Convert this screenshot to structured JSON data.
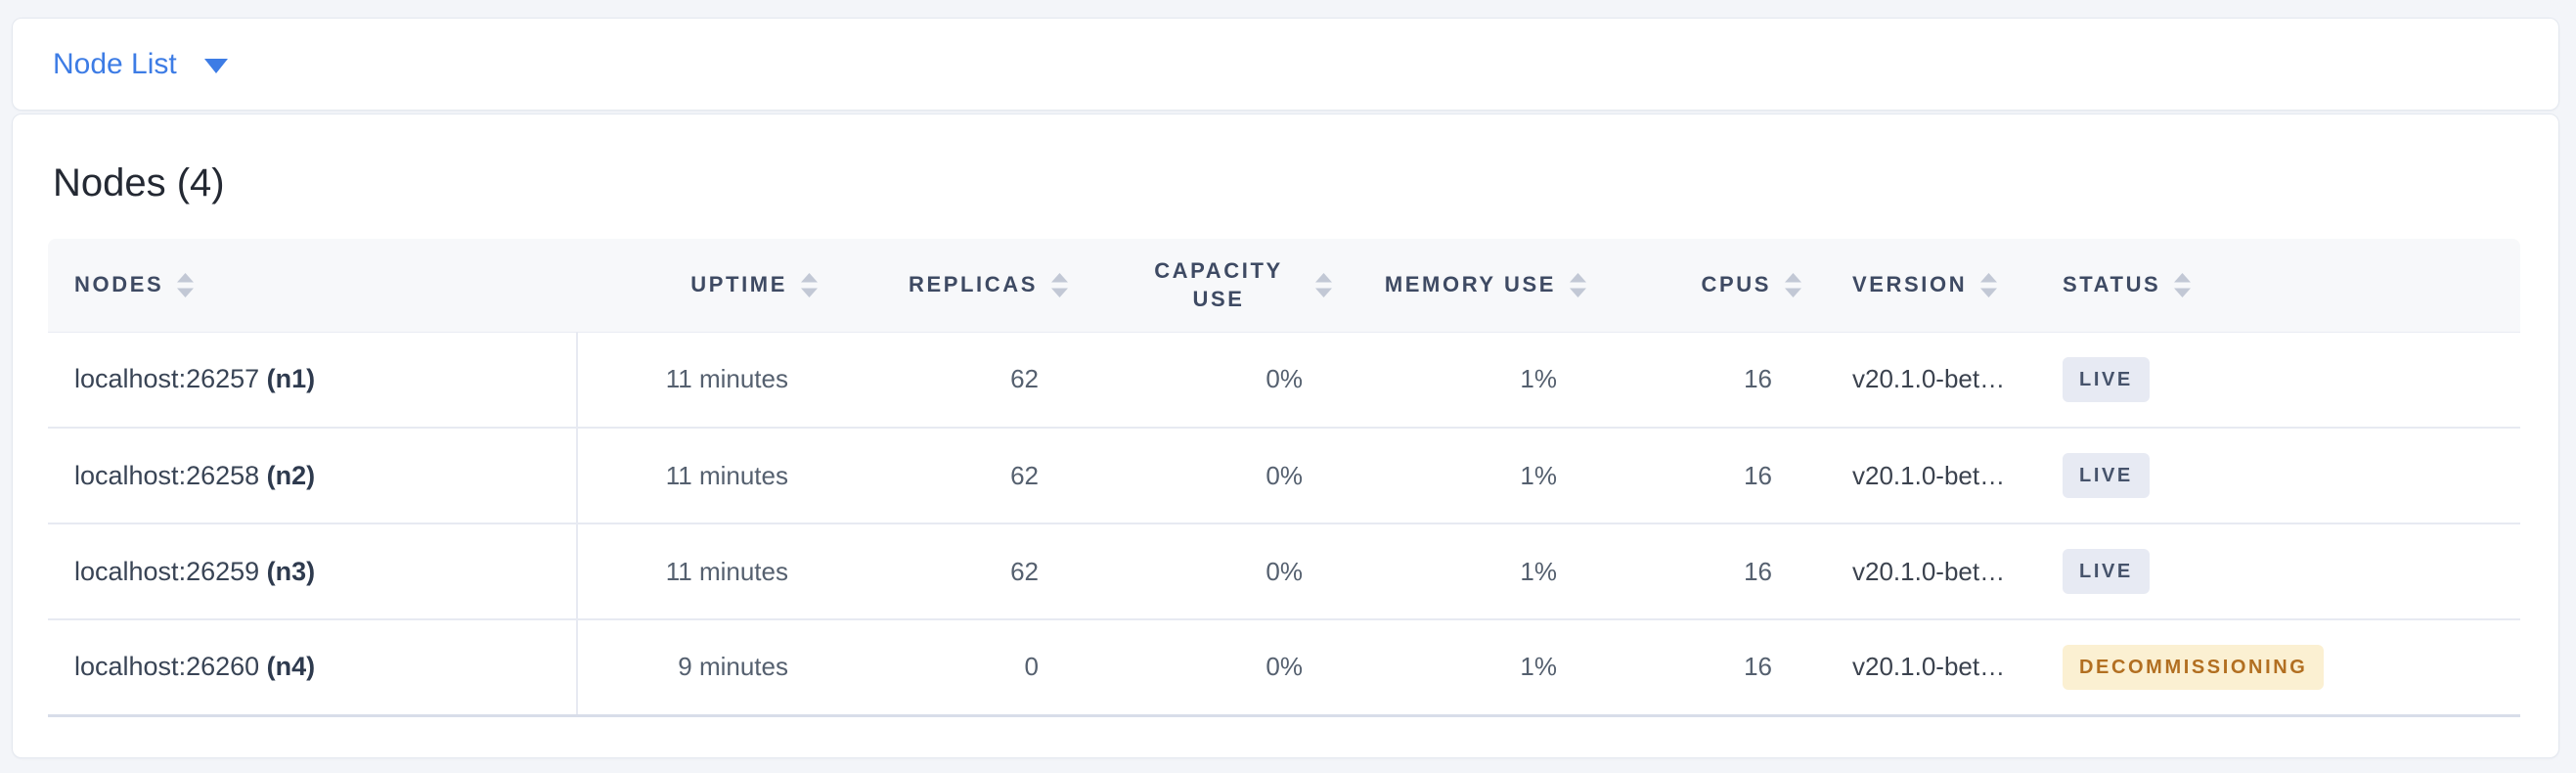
{
  "view_selector": {
    "label": "Node List",
    "icon": "caret-down-icon"
  },
  "panel": {
    "title": "Nodes (4)"
  },
  "table": {
    "columns": [
      {
        "key": "nodes",
        "label": "NODES",
        "align": "left"
      },
      {
        "key": "uptime",
        "label": "UPTIME",
        "align": "right"
      },
      {
        "key": "replicas",
        "label": "REPLICAS",
        "align": "right"
      },
      {
        "key": "capacity",
        "label": "CAPACITY USE",
        "align": "right"
      },
      {
        "key": "memory",
        "label": "MEMORY USE",
        "align": "right"
      },
      {
        "key": "cpus",
        "label": "CPUS",
        "align": "right"
      },
      {
        "key": "version",
        "label": "VERSION",
        "align": "left"
      },
      {
        "key": "status",
        "label": "STATUS",
        "align": "left"
      }
    ],
    "sort_icon": "sort-unsorted-icon",
    "rows": [
      {
        "address": "localhost:26257",
        "node_id": "(n1)",
        "uptime": "11 minutes",
        "replicas": "62",
        "capacity": "0%",
        "memory": "1%",
        "cpus": "16",
        "version": "v20.1.0-bet…",
        "status": "LIVE",
        "status_variant": "live"
      },
      {
        "address": "localhost:26258",
        "node_id": "(n2)",
        "uptime": "11 minutes",
        "replicas": "62",
        "capacity": "0%",
        "memory": "1%",
        "cpus": "16",
        "version": "v20.1.0-bet…",
        "status": "LIVE",
        "status_variant": "live"
      },
      {
        "address": "localhost:26259",
        "node_id": "(n3)",
        "uptime": "11 minutes",
        "replicas": "62",
        "capacity": "0%",
        "memory": "1%",
        "cpus": "16",
        "version": "v20.1.0-bet…",
        "status": "LIVE",
        "status_variant": "live"
      },
      {
        "address": "localhost:26260",
        "node_id": "(n4)",
        "uptime": "9 minutes",
        "replicas": "0",
        "capacity": "0%",
        "memory": "1%",
        "cpus": "16",
        "version": "v20.1.0-bet…",
        "status": "DECOMMISSIONING",
        "status_variant": "warning"
      }
    ]
  },
  "colors": {
    "accent_blue": "#3d7ce5",
    "header_text": "#3e4a63",
    "badge_live_bg": "#e7eaf3",
    "badge_live_text": "#46536b",
    "badge_warning_bg": "#fbf0d2",
    "badge_warning_text": "#b26f21",
    "page_bg": "#f3f5f9"
  }
}
